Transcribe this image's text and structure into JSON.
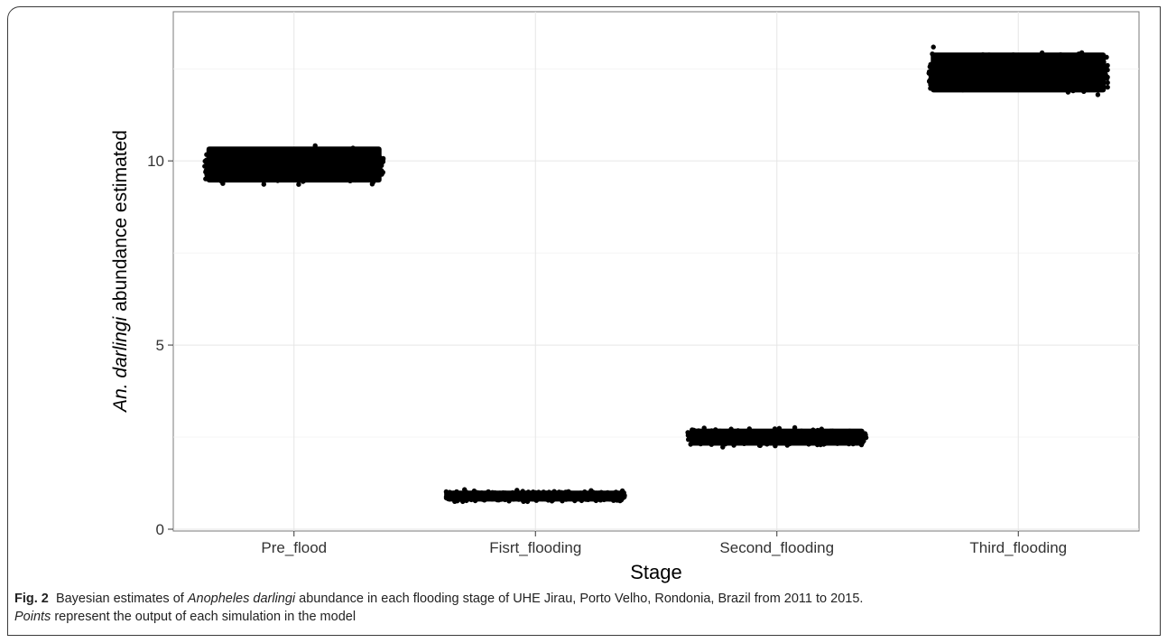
{
  "caption": {
    "fig_label": "Fig. 2",
    "text_1": "Bayesian estimates of ",
    "species": "Anopheles darlingi",
    "text_2": " abundance in each flooding stage of UHE Jirau, Porto Velho, Rondonia, Brazil from 2011 to 2015.",
    "points_word": "Points",
    "text_3": " represent the output of each simulation in the model"
  },
  "chart_data": {
    "type": "scatter",
    "title": "",
    "xlabel": "Stage",
    "ylabel_italic": "An. darlingi",
    "ylabel_rest": "abundance estimated",
    "categories": [
      "Pre_flood",
      "Fisrt_flooding",
      "Second_flooding",
      "Third_flooding"
    ],
    "yticks": [
      0,
      5,
      10
    ],
    "ytick_labels": [
      "0",
      "5",
      "10"
    ],
    "ylim": [
      0,
      14
    ],
    "grid": true,
    "point_color": "#000000",
    "series": [
      {
        "category": "Pre_flood",
        "center": 9.9,
        "min": 9.0,
        "max": 10.8
      },
      {
        "category": "Fisrt_flooding",
        "center": 0.9,
        "min": 0.65,
        "max": 1.2
      },
      {
        "category": "Second_flooding",
        "center": 2.5,
        "min": 2.1,
        "max": 2.95
      },
      {
        "category": "Third_flooding",
        "center": 12.4,
        "min": 11.45,
        "max": 13.45
      }
    ]
  }
}
